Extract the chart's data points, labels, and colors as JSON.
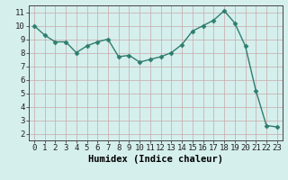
{
  "x": [
    0,
    1,
    2,
    3,
    4,
    5,
    6,
    7,
    8,
    9,
    10,
    11,
    12,
    13,
    14,
    15,
    16,
    17,
    18,
    19,
    20,
    21,
    22,
    23
  ],
  "y": [
    10.0,
    9.3,
    8.8,
    8.8,
    8.0,
    8.5,
    8.8,
    9.0,
    7.7,
    7.8,
    7.3,
    7.5,
    7.7,
    8.0,
    8.6,
    9.6,
    10.0,
    10.4,
    11.1,
    10.2,
    8.5,
    5.2,
    2.6,
    2.5
  ],
  "line_color": "#2e7d6e",
  "marker": "D",
  "marker_size": 2.5,
  "bg_color": "#d5efed",
  "grid_color": "#c8a8a8",
  "xlabel": "Humidex (Indice chaleur)",
  "xlim": [
    -0.5,
    23.5
  ],
  "ylim": [
    1.5,
    11.5
  ],
  "yticks": [
    2,
    3,
    4,
    5,
    6,
    7,
    8,
    9,
    10,
    11
  ],
  "xticks": [
    0,
    1,
    2,
    3,
    4,
    5,
    6,
    7,
    8,
    9,
    10,
    11,
    12,
    13,
    14,
    15,
    16,
    17,
    18,
    19,
    20,
    21,
    22,
    23
  ],
  "tick_fontsize": 6.5,
  "xlabel_fontsize": 7.5,
  "line_width": 1.0
}
